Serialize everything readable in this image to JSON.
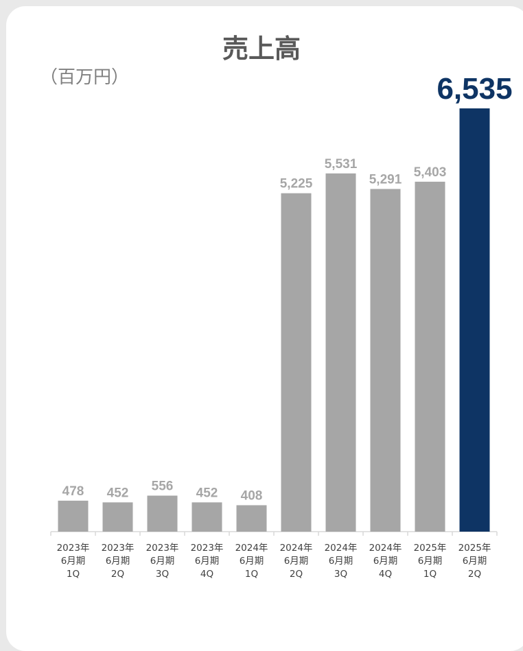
{
  "title": "売上高",
  "unit": "（百万円）",
  "colors": {
    "bar": "#a6a6a6",
    "highlight": "#0e3464",
    "label": "#a6a6a6",
    "axis": "#d9d9d9"
  },
  "chart_data": {
    "type": "bar",
    "title": "売上高",
    "ylabel": "（百万円）",
    "ylim": [
      0,
      6535
    ],
    "grid": false,
    "categories": [
      [
        "2023年",
        "6月期",
        "1Q"
      ],
      [
        "2023年",
        "6月期",
        "2Q"
      ],
      [
        "2023年",
        "6月期",
        "3Q"
      ],
      [
        "2023年",
        "6月期",
        "4Q"
      ],
      [
        "2024年",
        "6月期",
        "1Q"
      ],
      [
        "2024年",
        "6月期",
        "2Q"
      ],
      [
        "2024年",
        "6月期",
        "3Q"
      ],
      [
        "2024年",
        "6月期",
        "4Q"
      ],
      [
        "2025年",
        "6月期",
        "1Q"
      ],
      [
        "2025年",
        "6月期",
        "2Q"
      ]
    ],
    "values": [
      478,
      452,
      556,
      452,
      408,
      5225,
      5531,
      5291,
      5403,
      6535
    ],
    "labels": [
      "478",
      "452",
      "556",
      "452",
      "408",
      "5,225",
      "5,531",
      "5,291",
      "5,403",
      "6,535"
    ],
    "highlight_index": 9
  }
}
